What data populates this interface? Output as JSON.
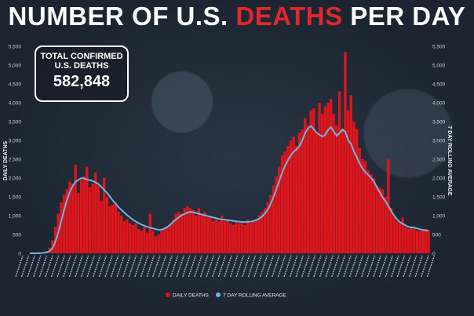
{
  "header": {
    "title_a": "NUMBER OF U.S. ",
    "title_b": "DEATHS",
    "title_c": " PER DAY"
  },
  "total_box": {
    "line1": "TOTAL CONFIRMED",
    "line2": "U.S. DEATHS",
    "value": "582,848"
  },
  "chart_data": {
    "type": "bar",
    "ylabel": "DAILY DEATHS",
    "y2label": "7 DAY ROLLING AVERAGE",
    "ylim": [
      0,
      5500
    ],
    "yticks": [
      "0",
      "500",
      "1,000",
      "1,500",
      "2,000",
      "2,500",
      "3,000",
      "3,500",
      "4,000",
      "4,500",
      "5,000",
      "5,500"
    ],
    "legend": {
      "position": "bottom",
      "items": [
        "DAILY DEATHS",
        "7 DAY ROLLING AVERAGE"
      ]
    },
    "colors": {
      "bars": "#e0151b",
      "line": "#6fb3e0"
    },
    "grid": false,
    "series": [
      {
        "name": "DAILY DEATHS",
        "values": [
          0,
          0,
          0,
          0,
          5,
          20,
          60,
          150,
          350,
          700,
          1050,
          1350,
          1550,
          1700,
          1900,
          1850,
          2350,
          1600,
          1950,
          2050,
          2300,
          1750,
          1850,
          2150,
          1800,
          1400,
          2000,
          1500,
          1250,
          1300,
          1350,
          1100,
          1000,
          850,
          900,
          800,
          750,
          800,
          650,
          600,
          700,
          550,
          1050,
          600,
          450,
          500,
          600,
          650,
          700,
          800,
          900,
          1050,
          1100,
          1050,
          1200,
          1250,
          1200,
          1150,
          1000,
          1200,
          1050,
          1100,
          950,
          1000,
          850,
          900,
          850,
          1000,
          850,
          900,
          800,
          750,
          850,
          800,
          800,
          750,
          900,
          800,
          850,
          900,
          1000,
          1100,
          1200,
          1350,
          1550,
          1800,
          2050,
          2300,
          2600,
          2700,
          2850,
          3000,
          3100,
          2850,
          3200,
          3300,
          3600,
          3400,
          3800,
          3850,
          3200,
          4000,
          3700,
          3900,
          4000,
          4100,
          3700,
          3400,
          4300,
          3300,
          5350,
          3800,
          4200,
          3500,
          3300,
          2800,
          2500,
          2450,
          2200,
          2100,
          2000,
          1800,
          1750,
          1700,
          1500,
          2500,
          1200,
          1000,
          850,
          800,
          950,
          700,
          650,
          700,
          650,
          600,
          600,
          650,
          650,
          600
        ]
      },
      {
        "name": "7 DAY ROLLING AVERAGE",
        "values": [
          0,
          0,
          0,
          0,
          5,
          12,
          28,
          60,
          140,
          320,
          560,
          860,
          1150,
          1420,
          1640,
          1790,
          1900,
          1950,
          2000,
          1990,
          1960,
          1940,
          1920,
          1880,
          1840,
          1760,
          1680,
          1600,
          1500,
          1400,
          1310,
          1220,
          1150,
          1080,
          1010,
          950,
          890,
          840,
          800,
          760,
          730,
          700,
          680,
          660,
          640,
          620,
          630,
          660,
          700,
          760,
          830,
          900,
          960,
          1010,
          1050,
          1080,
          1100,
          1090,
          1070,
          1050,
          1030,
          1010,
          990,
          970,
          950,
          930,
          910,
          900,
          890,
          880,
          870,
          860,
          850,
          840,
          830,
          830,
          830,
          840,
          860,
          880,
          920,
          980,
          1060,
          1170,
          1320,
          1500,
          1710,
          1930,
          2150,
          2330,
          2480,
          2600,
          2700,
          2760,
          2850,
          3000,
          3200,
          3320,
          3380,
          3300,
          3200,
          3150,
          3100,
          3150,
          3280,
          3350,
          3230,
          3120,
          3200,
          3290,
          3220,
          3000,
          2900,
          2700,
          2550,
          2380,
          2250,
          2150,
          2080,
          2000,
          1900,
          1750,
          1620,
          1480,
          1380,
          1250,
          1120,
          1000,
          900,
          830,
          780,
          740,
          700,
          690,
          680,
          660,
          640,
          620,
          610,
          600
        ]
      }
    ]
  }
}
